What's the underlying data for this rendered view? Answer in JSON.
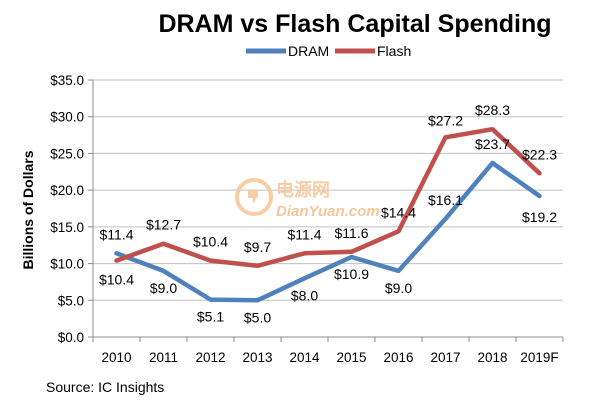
{
  "chart_data": {
    "type": "line",
    "title": "DRAM vs Flash Capital Spending",
    "ylabel": "Billions of Dollars",
    "xlabel": "",
    "categories": [
      "2010",
      "2011",
      "2012",
      "2013",
      "2014",
      "2015",
      "2016",
      "2017",
      "2018",
      "2019F"
    ],
    "ylim": [
      0,
      35
    ],
    "yticks": [
      "$0.0",
      "$5.0",
      "$10.0",
      "$15.0",
      "$20.0",
      "$25.0",
      "$30.0",
      "$35.0"
    ],
    "ytick_values": [
      0,
      5,
      10,
      15,
      20,
      25,
      30,
      35
    ],
    "grid": true,
    "legend_position": "top-center",
    "series": [
      {
        "name": "DRAM",
        "color": "#4f81bd",
        "values": [
          11.4,
          9.0,
          5.1,
          5.0,
          8.0,
          10.9,
          9.0,
          16.1,
          23.7,
          19.2
        ],
        "labels": [
          "$11.4",
          "$9.0",
          "$5.1",
          "$5.0",
          "$8.0",
          "$10.9",
          "$9.0",
          "$16.1",
          "$23.7",
          "$19.2"
        ]
      },
      {
        "name": "Flash",
        "color": "#c0504d",
        "values": [
          10.4,
          12.7,
          10.4,
          9.7,
          11.4,
          11.6,
          14.4,
          27.2,
          28.3,
          22.3
        ],
        "labels": [
          "$10.4",
          "$12.7",
          "$10.4",
          "$9.7",
          "$11.4",
          "$11.6",
          "$14.4",
          "$27.2",
          "$28.3",
          "$22.3"
        ]
      }
    ]
  },
  "source": "Source:  IC Insights",
  "watermark": {
    "cn": "电源网",
    "site": "DianYuan.com",
    "color": "#f5b57a"
  }
}
